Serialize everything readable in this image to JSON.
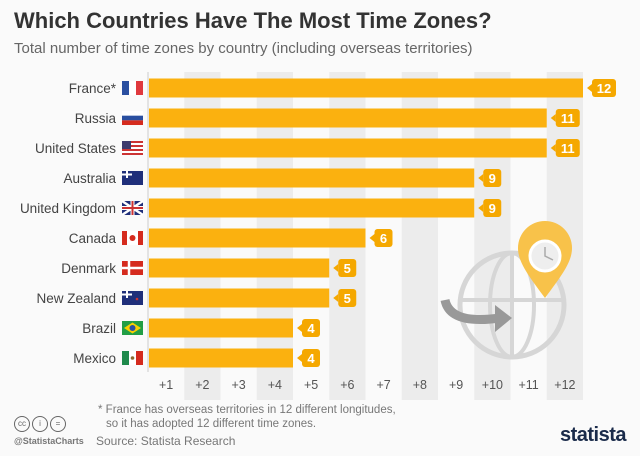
{
  "title": "Which Countries Have The Most Time Zones?",
  "subtitle": "Total number of time zones by country (including overseas territories)",
  "colors": {
    "bar": "#fbb10f",
    "label": "#f5a800",
    "shade": "#ececec"
  },
  "chart_data": {
    "type": "bar",
    "orientation": "horizontal",
    "categories": [
      "France*",
      "Russia",
      "United States",
      "Australia",
      "United Kingdom",
      "Canada",
      "Denmark",
      "New Zealand",
      "Brazil",
      "Mexico"
    ],
    "values": [
      12,
      11,
      11,
      9,
      9,
      6,
      5,
      5,
      4,
      4
    ],
    "flags": [
      "fr",
      "ru",
      "us",
      "au",
      "gb",
      "ca",
      "dk",
      "nz",
      "br",
      "mx"
    ],
    "xticks": [
      "+1",
      "+2",
      "+3",
      "+4",
      "+5",
      "+6",
      "+7",
      "+8",
      "+9",
      "+10",
      "+11",
      "+12"
    ],
    "xlim": [
      0,
      12
    ],
    "title": "Which Countries Have The Most Time Zones?",
    "xlabel": "",
    "ylabel": ""
  },
  "footnote_line1": "* France has overseas territories in 12 different longitudes,",
  "footnote_line2": "so it has adopted 12 different time zones.",
  "source": "Source: Statista Research",
  "handle": "@StatistaCharts",
  "logo": "statista"
}
